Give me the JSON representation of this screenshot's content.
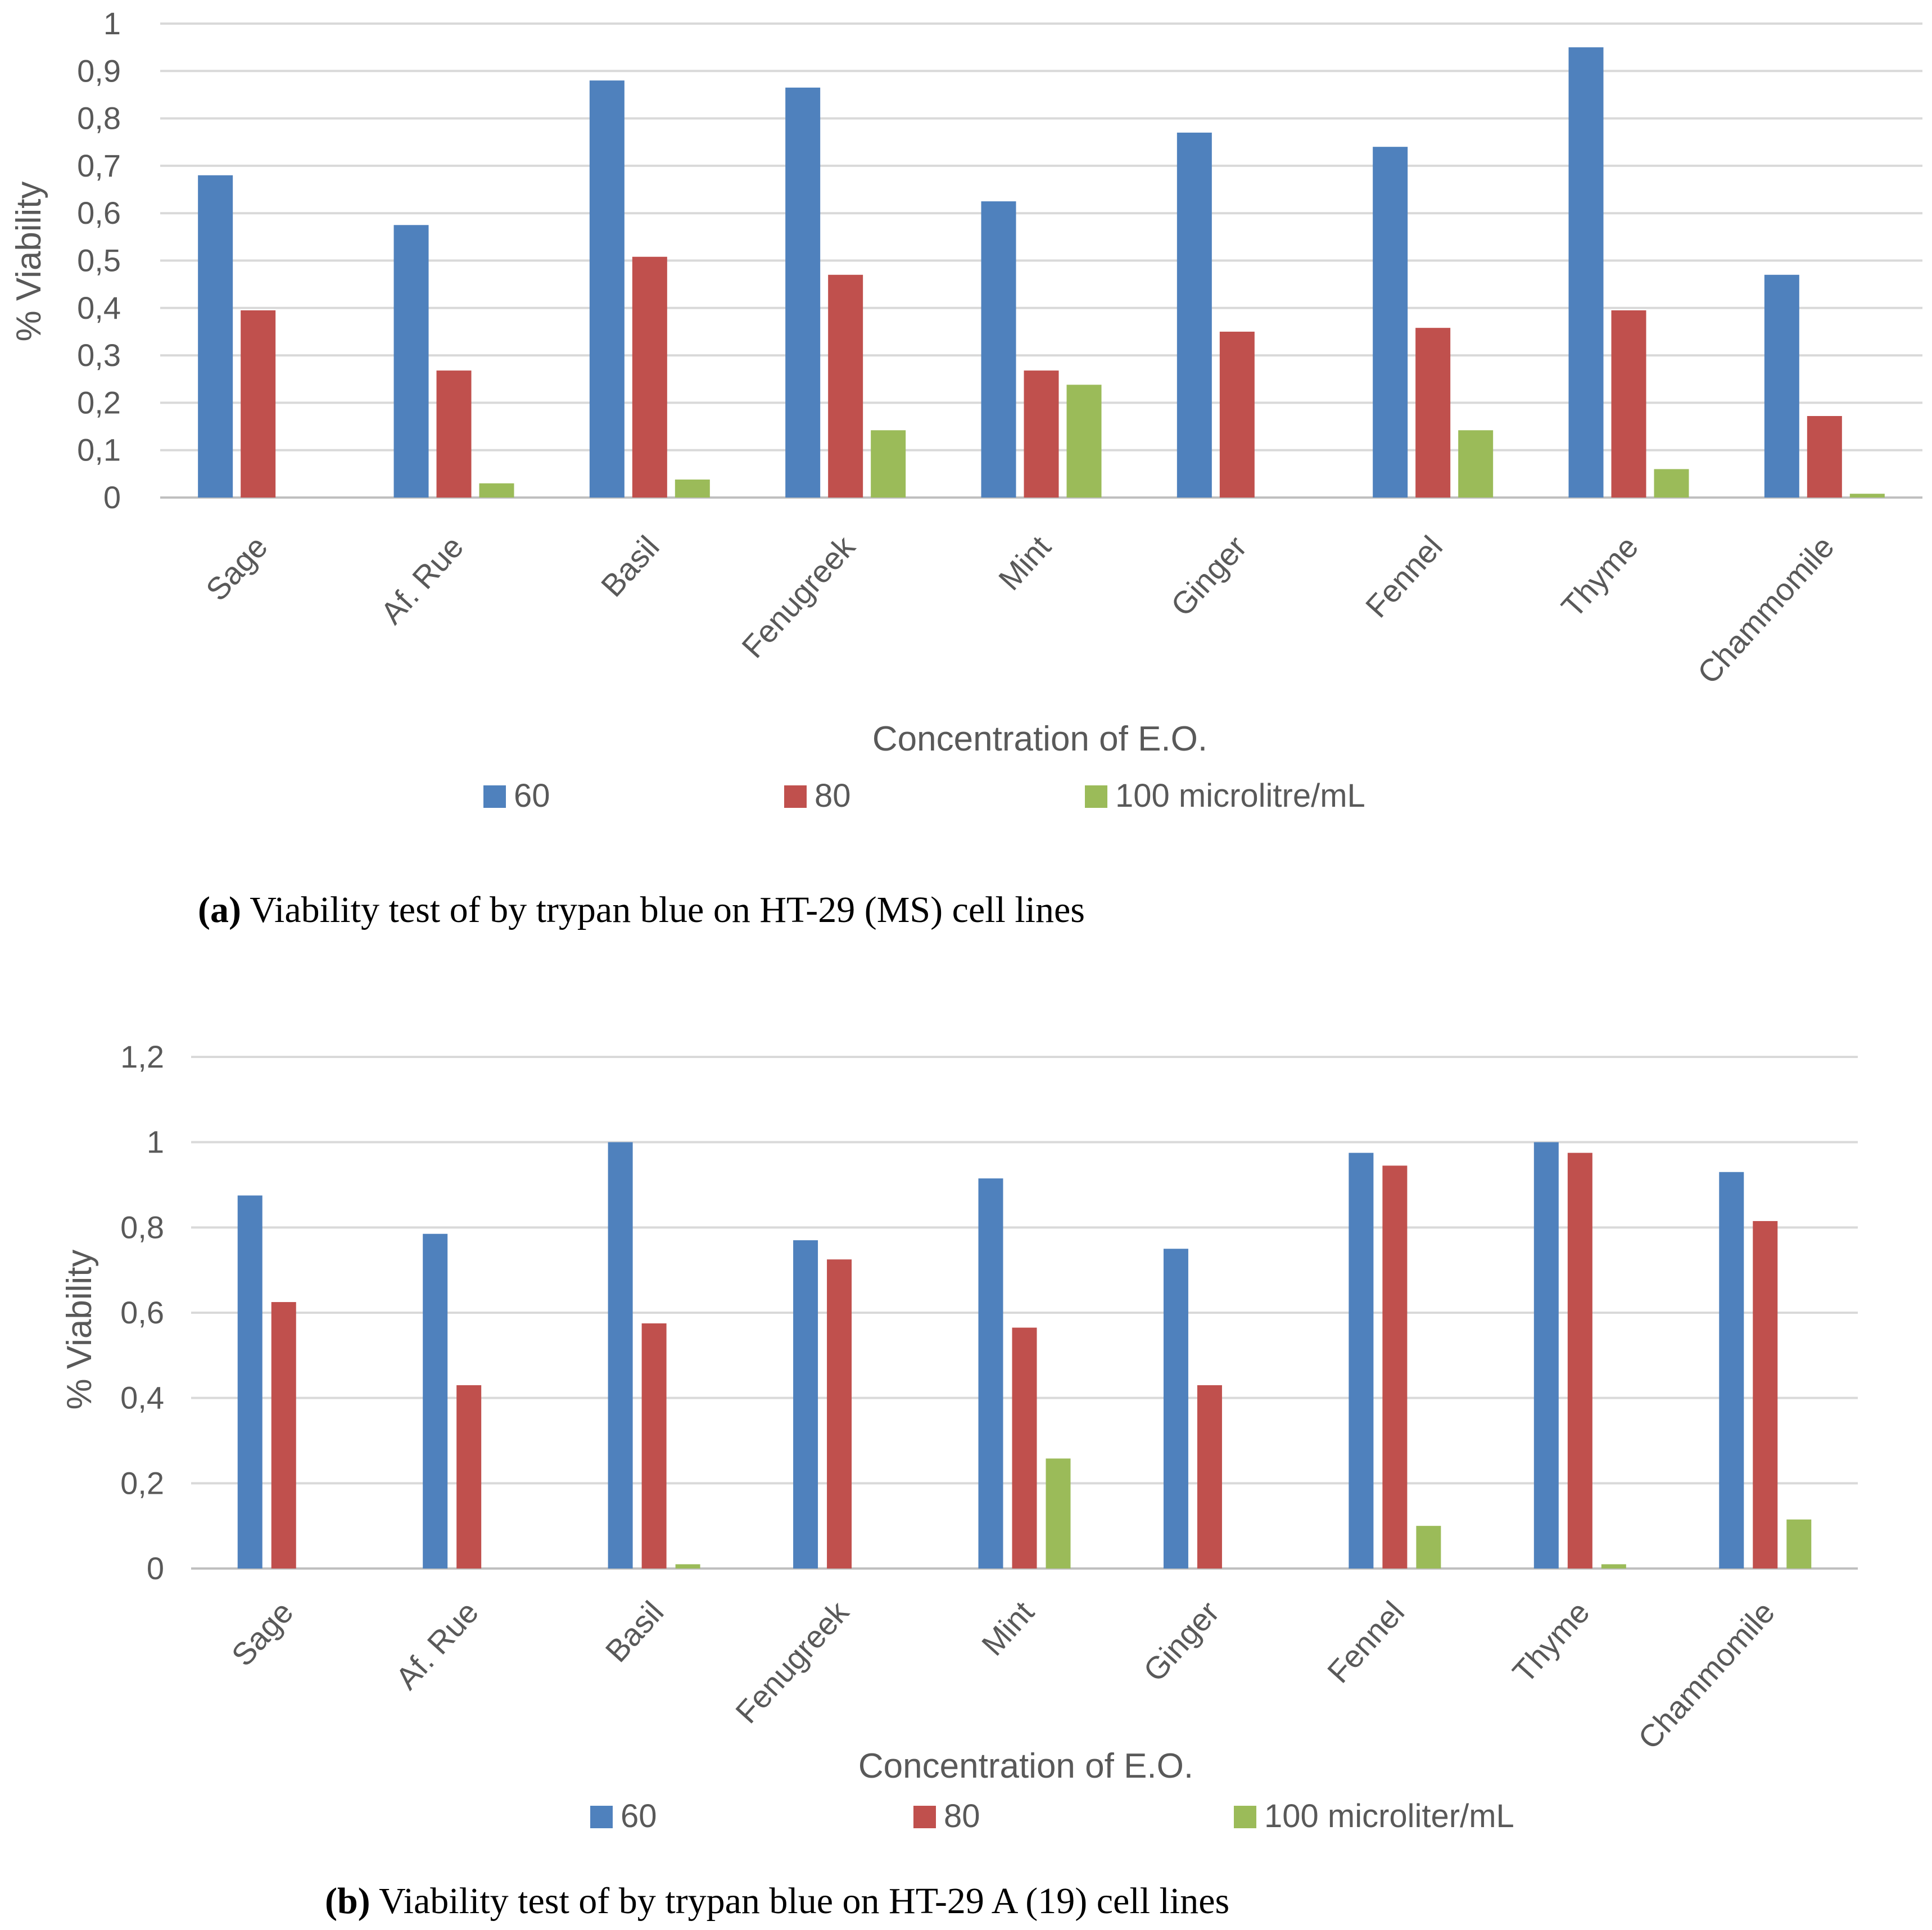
{
  "chart_data": [
    {
      "type": "bar",
      "categories": [
        "Sage",
        "Af. Rue",
        "Basil",
        "Fenugreek",
        "Mint",
        "Ginger",
        "Fennel",
        "Thyme",
        "Chammomile"
      ],
      "series": [
        {
          "name": "60",
          "color": "#4f81bd",
          "values": [
            0.68,
            0.575,
            0.88,
            0.865,
            0.625,
            0.77,
            0.74,
            0.95,
            0.47
          ]
        },
        {
          "name": "80",
          "color": "#c0504d",
          "values": [
            0.395,
            0.268,
            0.508,
            0.47,
            0.268,
            0.35,
            0.358,
            0.395,
            0.172
          ]
        },
        {
          "name": "100 microlitre/mL",
          "color": "#9bbb59",
          "values": [
            0,
            0.03,
            0.038,
            0.142,
            0.238,
            0,
            0.142,
            0.06,
            0.008
          ]
        }
      ],
      "yticks": [
        "0",
        "0,1",
        "0,2",
        "0,3",
        "0,4",
        "0,5",
        "0,6",
        "0,7",
        "0,8",
        "0,9",
        "1"
      ],
      "ylim": [
        0,
        1
      ],
      "ylabel": "% Viability",
      "xlabel": "Concentration  of E.O.",
      "legend_position": "bottom",
      "grid": true,
      "caption_label": "(a)",
      "caption_text": " Viability test of by trypan blue on HT-29 (MS) cell lines"
    },
    {
      "type": "bar",
      "categories": [
        "Sage",
        "Af. Rue",
        "Basil",
        "Fenugreek",
        "Mint",
        "Ginger",
        "Fennel",
        "Thyme",
        "Chammomile"
      ],
      "series": [
        {
          "name": "60",
          "color": "#4f81bd",
          "values": [
            0.875,
            0.785,
            1.0,
            0.77,
            0.915,
            0.75,
            0.975,
            1.0,
            0.93
          ]
        },
        {
          "name": "80",
          "color": "#c0504d",
          "values": [
            0.625,
            0.43,
            0.575,
            0.725,
            0.565,
            0.43,
            0.945,
            0.975,
            0.815
          ]
        },
        {
          "name": "100 microliter/mL",
          "color": "#9bbb59",
          "values": [
            0,
            0,
            0.01,
            0,
            0.258,
            0,
            0.1,
            0.01,
            0.115
          ]
        }
      ],
      "yticks": [
        "0",
        "0,2",
        "0,4",
        "0,6",
        "0,8",
        "1",
        "1,2"
      ],
      "ylim": [
        0,
        1.2
      ],
      "ylabel": "% Viability",
      "xlabel": "Concentration  of E.O.",
      "legend_position": "bottom",
      "grid": true,
      "caption_label": "(b)",
      "caption_text": " Viability test of by trypan blue on HT-29 A (19) cell lines"
    }
  ]
}
